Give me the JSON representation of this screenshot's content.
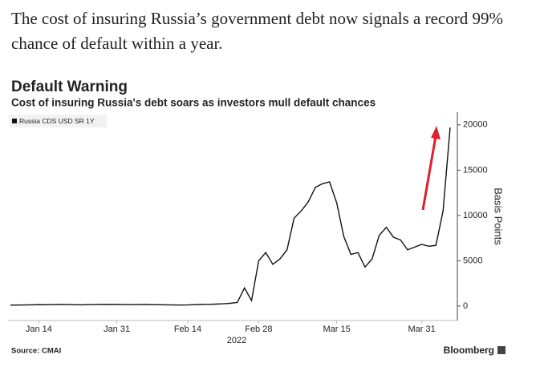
{
  "caption": "The cost of insuring Russia’s government debt now signals a record 99% chance of default within a year.",
  "chart_data": {
    "type": "line",
    "title": "Default Warning",
    "subtitle": "Cost of insuring Russia's debt soars as investors mull default chances",
    "y_label": "Basis Points",
    "x_year_label": "2022",
    "source": "Source: CMAI",
    "brand": "Bloomberg",
    "categories": [
      "2022-01-10",
      "2022-01-11",
      "2022-01-12",
      "2022-01-13",
      "2022-01-14",
      "2022-01-17",
      "2022-01-18",
      "2022-01-19",
      "2022-01-20",
      "2022-01-21",
      "2022-01-24",
      "2022-01-25",
      "2022-01-26",
      "2022-01-27",
      "2022-01-28",
      "2022-01-31",
      "2022-02-01",
      "2022-02-02",
      "2022-02-03",
      "2022-02-04",
      "2022-02-07",
      "2022-02-08",
      "2022-02-09",
      "2022-02-10",
      "2022-02-11",
      "2022-02-14",
      "2022-02-15",
      "2022-02-16",
      "2022-02-17",
      "2022-02-18",
      "2022-02-21",
      "2022-02-22",
      "2022-02-23",
      "2022-02-24",
      "2022-02-25",
      "2022-02-28",
      "2022-03-01",
      "2022-03-02",
      "2022-03-03",
      "2022-03-04",
      "2022-03-07",
      "2022-03-08",
      "2022-03-09",
      "2022-03-10",
      "2022-03-11",
      "2022-03-14",
      "2022-03-15",
      "2022-03-16",
      "2022-03-17",
      "2022-03-18",
      "2022-03-21",
      "2022-03-22",
      "2022-03-23",
      "2022-03-24",
      "2022-03-25",
      "2022-03-28",
      "2022-03-29",
      "2022-03-30",
      "2022-03-31",
      "2022-04-01",
      "2022-04-04",
      "2022-04-05",
      "2022-04-06"
    ],
    "series": [
      {
        "name": "Russia CDS USD SR 1Y",
        "color": "#111111",
        "values": [
          100,
          110,
          120,
          130,
          150,
          140,
          150,
          170,
          160,
          140,
          130,
          150,
          160,
          170,
          180,
          170,
          160,
          150,
          160,
          170,
          150,
          140,
          130,
          120,
          110,
          120,
          150,
          170,
          190,
          210,
          250,
          300,
          400,
          2000,
          600,
          5000,
          5900,
          4600,
          5200,
          6200,
          9700,
          10500,
          11500,
          13100,
          13500,
          13700,
          11400,
          7700,
          5700,
          5900,
          4300,
          5200,
          7800,
          8700,
          7600,
          7300,
          6200,
          6500,
          6800,
          6600,
          6700,
          10500,
          19700
        ]
      }
    ],
    "xticks": [
      {
        "value": "2022-01-14",
        "label": "Jan 14"
      },
      {
        "value": "2022-01-31",
        "label": "Jan 31"
      },
      {
        "value": "2022-02-14",
        "label": "Feb 14"
      },
      {
        "value": "2022-02-28",
        "label": "Feb 28"
      },
      {
        "value": "2022-03-15",
        "label": "Mar 15"
      },
      {
        "value": "2022-03-31",
        "label": "Mar 31"
      }
    ],
    "ylim": [
      -1600,
      21400
    ],
    "yticks": [
      0,
      5000,
      10000,
      15000,
      20000
    ],
    "y_axis_side": "right",
    "grid": false,
    "legend": "top-left"
  }
}
